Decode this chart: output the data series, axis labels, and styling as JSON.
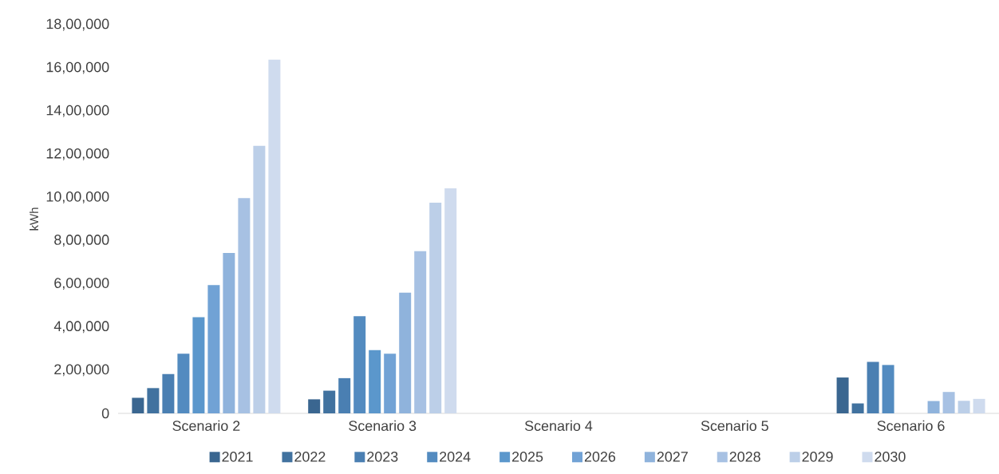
{
  "chart_data": {
    "type": "bar",
    "ylabel": "kWh",
    "categories": [
      "Scenario 2",
      "Scenario 3",
      "Scenario 4",
      "Scenario 5",
      "Scenario 6"
    ],
    "series": [
      {
        "name": "2021",
        "color": "#3a6690",
        "values": [
          72000,
          65000,
          null,
          null,
          166000
        ]
      },
      {
        "name": "2022",
        "color": "#41729f",
        "values": [
          117000,
          105000,
          null,
          null,
          46000
        ]
      },
      {
        "name": "2023",
        "color": "#4a7fb2",
        "values": [
          182000,
          163000,
          null,
          null,
          238000
        ]
      },
      {
        "name": "2024",
        "color": "#538bc0",
        "values": [
          276000,
          450000,
          null,
          null,
          224000
        ]
      },
      {
        "name": "2025",
        "color": "#5b97cc",
        "values": [
          445000,
          293000,
          null,
          null,
          null
        ]
      },
      {
        "name": "2026",
        "color": "#71a2d5",
        "values": [
          594000,
          276000,
          null,
          null,
          null
        ]
      },
      {
        "name": "2027",
        "color": "#8fb3dc",
        "values": [
          743000,
          559000,
          null,
          null,
          57000
        ]
      },
      {
        "name": "2028",
        "color": "#a7c1e3",
        "values": [
          997000,
          751000,
          null,
          null,
          99000
        ]
      },
      {
        "name": "2029",
        "color": "#bccfe8",
        "values": [
          1239000,
          976000,
          null,
          null,
          58000
        ]
      },
      {
        "name": "2030",
        "color": "#cfdbee",
        "values": [
          1638000,
          1042000,
          null,
          null,
          67000
        ]
      }
    ],
    "ylim": [
      0,
      1800000
    ],
    "yticks": [
      {
        "value": 0,
        "label": "0"
      },
      {
        "value": 200000,
        "label": "2,00,000"
      },
      {
        "value": 400000,
        "label": "4,00,000"
      },
      {
        "value": 600000,
        "label": "6,00,000"
      },
      {
        "value": 800000,
        "label": "8,00,000"
      },
      {
        "value": 1000000,
        "label": "10,00,000"
      },
      {
        "value": 1200000,
        "label": "12,00,000"
      },
      {
        "value": 1400000,
        "label": "14,00,000"
      },
      {
        "value": 1600000,
        "label": "16,00,000"
      },
      {
        "value": 1800000,
        "label": "18,00,000"
      }
    ],
    "grid": false,
    "legend": "bottom"
  }
}
